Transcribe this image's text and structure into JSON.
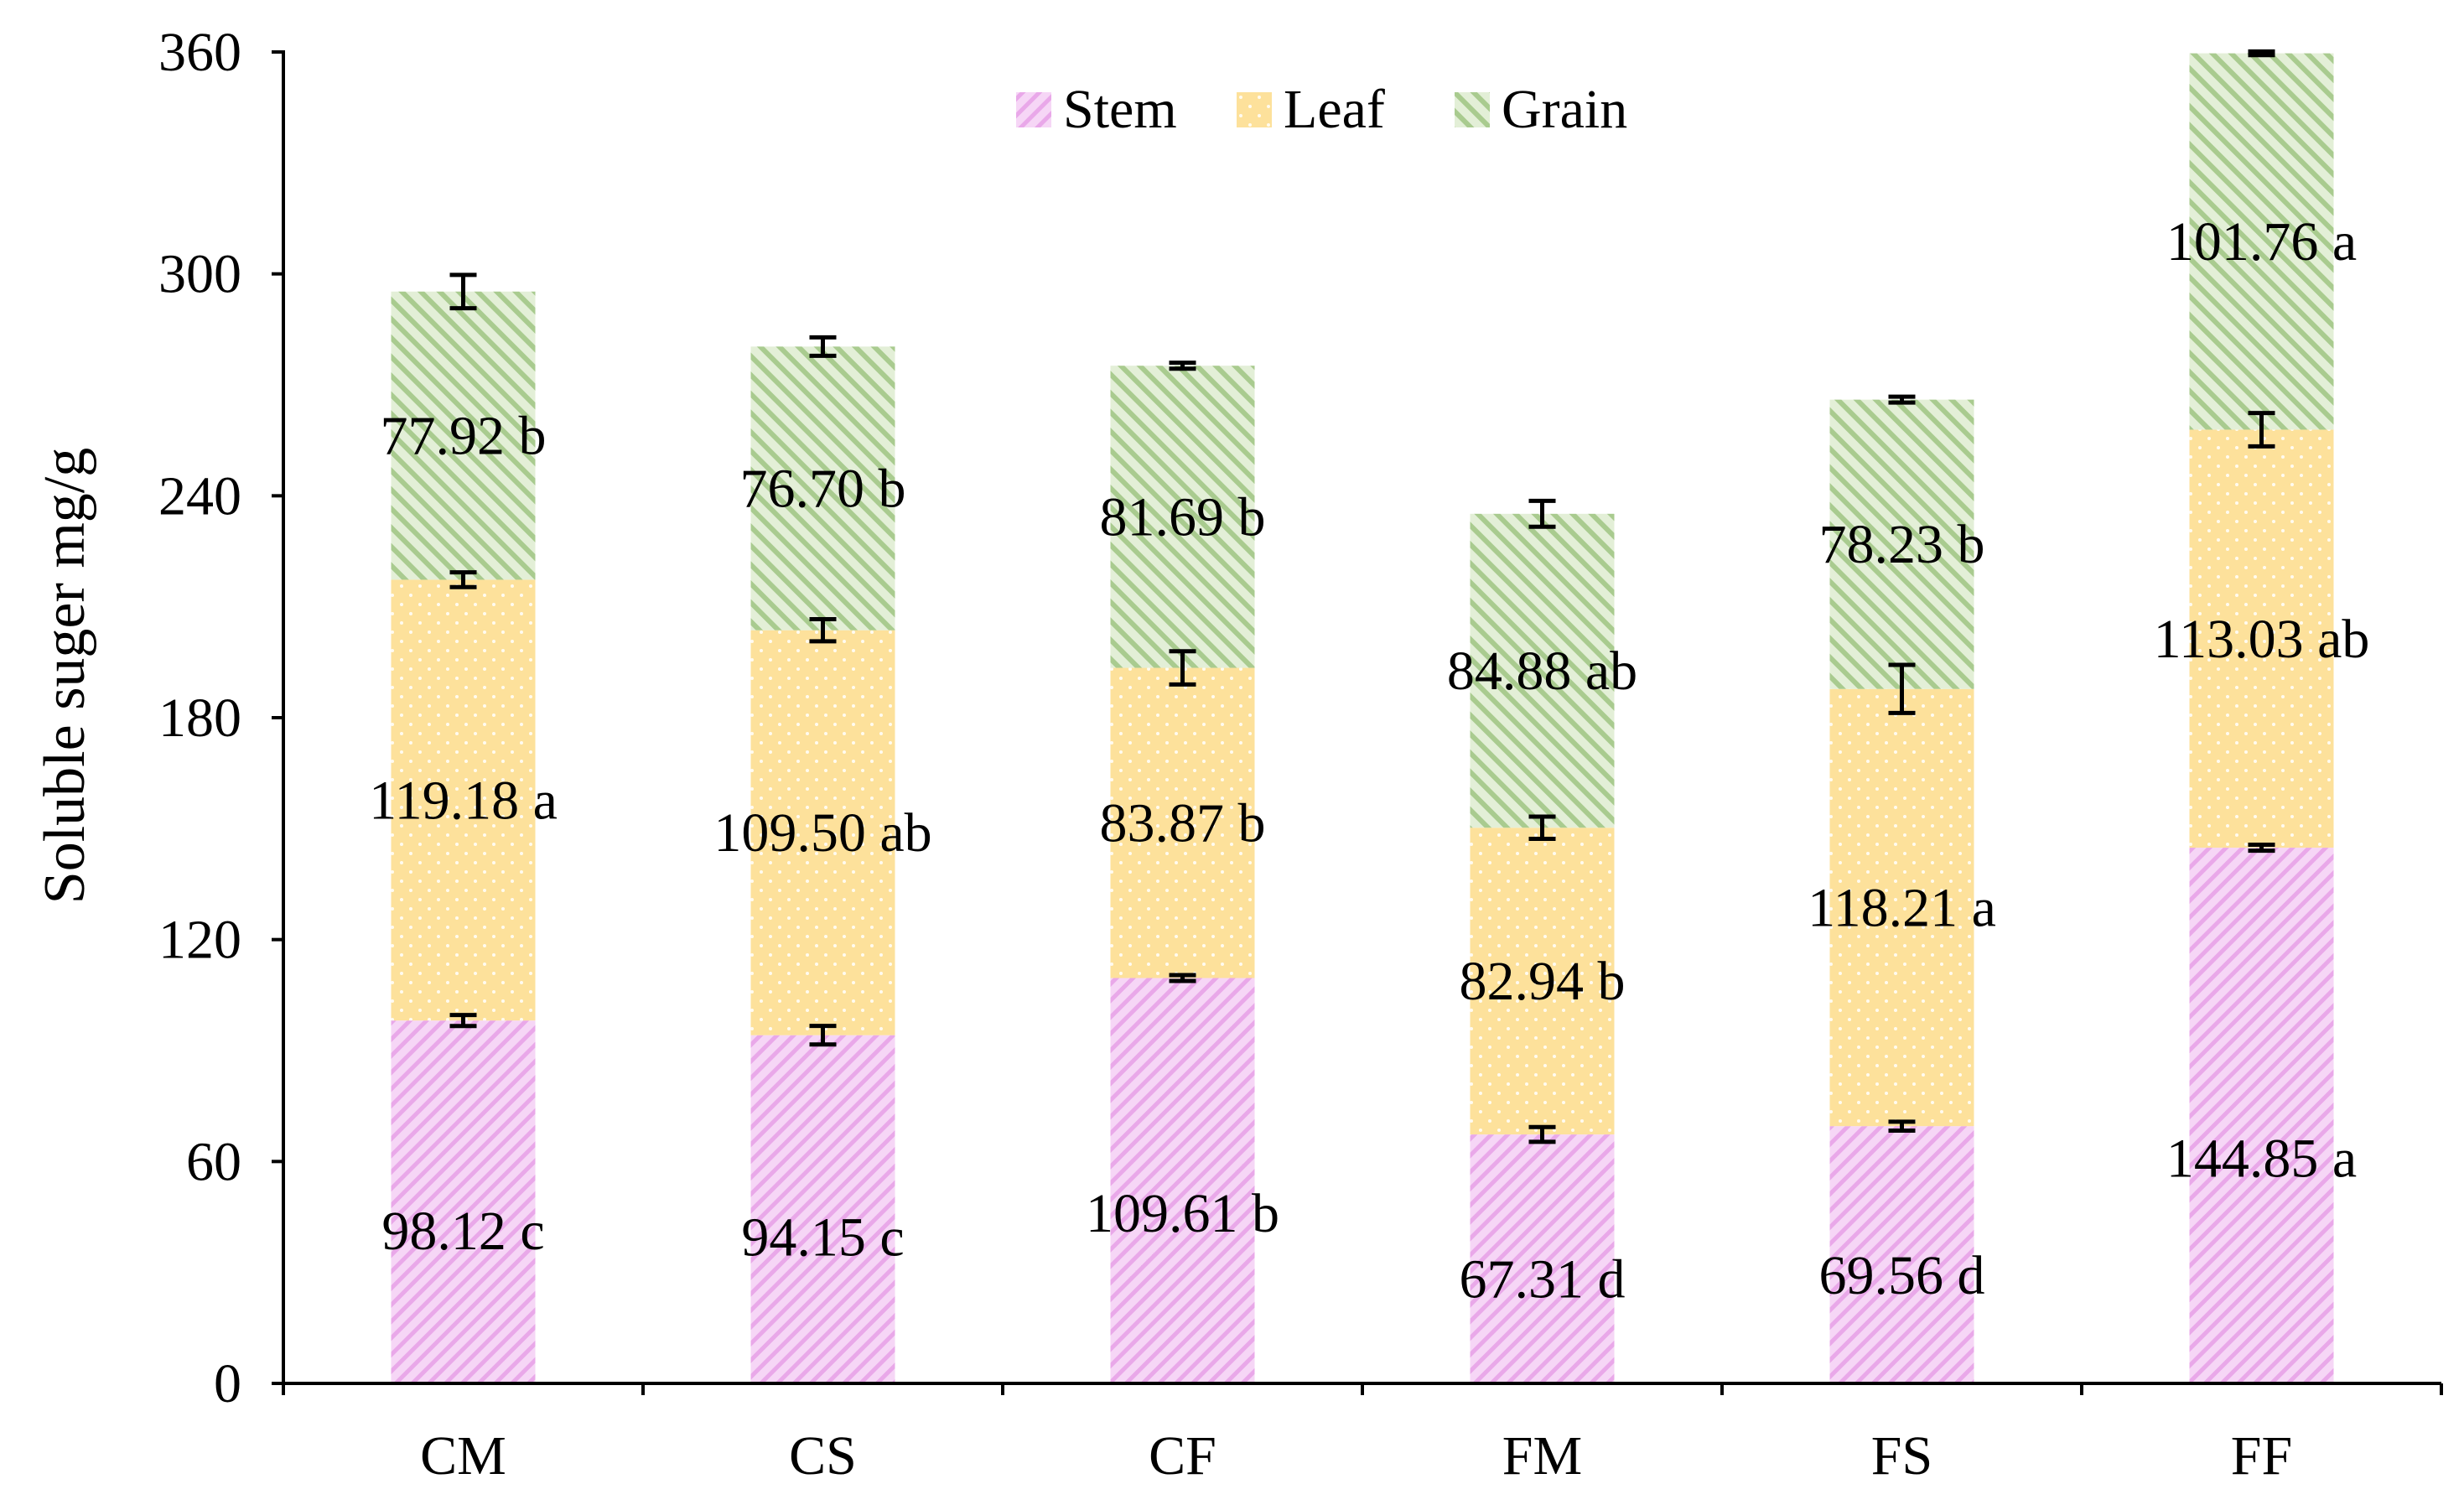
{
  "chart_data": {
    "type": "bar",
    "stacked": true,
    "title": "",
    "xlabel": "",
    "ylabel": "Soluble suger mg/g",
    "ylim": [
      0,
      360
    ],
    "yticks": [
      0,
      60,
      120,
      180,
      240,
      300,
      360
    ],
    "grid": false,
    "legend_position": "top-center",
    "categories": [
      "CM",
      "CS",
      "CF",
      "FM",
      "FS",
      "FF"
    ],
    "series": [
      {
        "name": "Stem",
        "color": "#f3c8f3",
        "values": [
          98.12,
          94.15,
          109.61,
          67.31,
          69.56,
          144.85
        ],
        "labels": [
          "98.12 c",
          "94.15 c",
          "109.61 b",
          "67.31 d",
          "69.56 d",
          "144.85 a"
        ],
        "errors": [
          1.5,
          2.5,
          0.8,
          2.0,
          1.2,
          0.8
        ]
      },
      {
        "name": "Leaf",
        "color": "#fde19b",
        "values": [
          119.18,
          109.5,
          83.87,
          82.94,
          118.21,
          113.03
        ],
        "labels": [
          "119.18 a",
          "109.50 ab",
          "83.87 b",
          "82.94 b",
          "118.21 a",
          "113.03 ab"
        ],
        "errors": [
          2.0,
          3.0,
          4.5,
          3.0,
          6.5,
          4.5
        ]
      },
      {
        "name": "Grain",
        "color": "#c9dfb8",
        "values": [
          77.92,
          76.7,
          81.69,
          84.88,
          78.23,
          101.76
        ],
        "labels": [
          "77.92 b",
          "76.70 b",
          "81.69 b",
          "84.88 ab",
          "78.23 b",
          "101.76 a"
        ],
        "errors": [
          4.5,
          2.5,
          0.8,
          3.5,
          0.8,
          0.5
        ]
      }
    ]
  }
}
